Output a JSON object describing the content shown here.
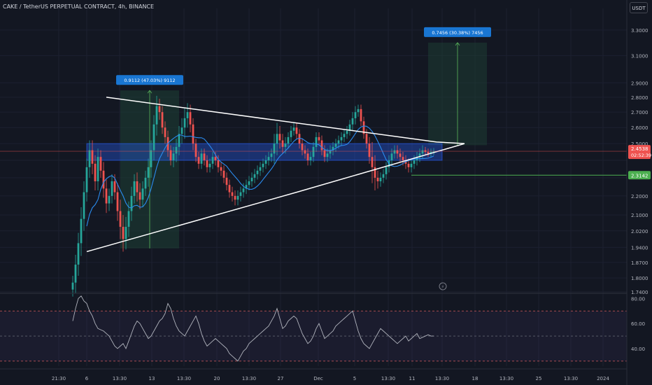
{
  "header": {
    "title": "CAKE / TetherUS PERPETUAL CONTRACT, 4h, BINANCE",
    "currency": "USDT"
  },
  "colors": {
    "background": "#131722",
    "bull": "#26a69a",
    "bear": "#ef5350",
    "zone": "#2962ff",
    "ma": "#2a8cf0",
    "triangle": "#ffffff",
    "target_box": "#1e4034",
    "support": "#4caf50",
    "rsi": "#b2b5be",
    "axis_text": "#b2b5be"
  },
  "chart_data": [
    {
      "type": "candlestick",
      "title": "",
      "series": [
        {
          "name": "",
          "kind": "candles"
        },
        {
          "name": "",
          "kind": "moving-average"
        }
      ],
      "x_ticks": [
        "21:30",
        "6",
        "13:30",
        "13",
        "13:30",
        "20",
        "13:30",
        "27",
        "Dec",
        "5",
        "13:30",
        "11",
        "13:30",
        "18",
        "13:30",
        "25",
        "13:30",
        "2024"
      ],
      "y_ticks": [
        1.74,
        1.8,
        1.87,
        1.94,
        2.02,
        2.1,
        2.2,
        2.3,
        2.4,
        2.5,
        2.6,
        2.7,
        2.8,
        2.9,
        3.1,
        3.3
      ],
      "y_tick_labels": [
        "1.7400",
        "1.8000",
        "1.8700",
        "1.9400",
        "2.0200",
        "2.1000",
        "2.2000",
        "",
        "",
        "2.5000",
        "2.6000",
        "2.7000",
        "2.8000",
        "2.9000",
        "3.1000",
        "3.3000"
      ],
      "ylim": [
        1.74,
        3.42
      ],
      "y_scale": "log",
      "bars": 130,
      "bar_closes": [
        1.78,
        1.86,
        1.96,
        2.08,
        2.22,
        2.36,
        2.46,
        2.38,
        2.28,
        2.42,
        2.34,
        2.24,
        2.16,
        2.2,
        2.28,
        2.22,
        2.12,
        2.04,
        1.98,
        2.04,
        2.12,
        2.2,
        2.28,
        2.22,
        2.18,
        2.24,
        2.3,
        2.36,
        2.46,
        2.62,
        2.74,
        2.7,
        2.6,
        2.54,
        2.46,
        2.4,
        2.44,
        2.48,
        2.56,
        2.6,
        2.66,
        2.7,
        2.62,
        2.5,
        2.42,
        2.38,
        2.44,
        2.4,
        2.36,
        2.38,
        2.42,
        2.4,
        2.36,
        2.34,
        2.3,
        2.26,
        2.22,
        2.2,
        2.18,
        2.2,
        2.22,
        2.24,
        2.26,
        2.28,
        2.3,
        2.32,
        2.34,
        2.36,
        2.38,
        2.4,
        2.42,
        2.44,
        2.5,
        2.56,
        2.52,
        2.48,
        2.5,
        2.54,
        2.58,
        2.6,
        2.56,
        2.5,
        2.46,
        2.44,
        2.4,
        2.42,
        2.48,
        2.54,
        2.52,
        2.46,
        2.42,
        2.44,
        2.46,
        2.48,
        2.5,
        2.52,
        2.54,
        2.56,
        2.58,
        2.62,
        2.66,
        2.7,
        2.72,
        2.64,
        2.56,
        2.5,
        2.42,
        2.36,
        2.3,
        2.28,
        2.3,
        2.32,
        2.36,
        2.4,
        2.44,
        2.46,
        2.44,
        2.42,
        2.4,
        2.38,
        2.36,
        2.38,
        2.4,
        2.42,
        2.44,
        2.46,
        2.45,
        2.44,
        2.45,
        2.4538
      ],
      "bar_ranges": [
        0.06,
        0.09,
        0.1,
        0.12,
        0.12,
        0.1,
        0.12,
        0.12,
        0.1,
        0.1,
        0.08,
        0.1,
        0.1,
        0.08,
        0.08,
        0.08,
        0.1,
        0.12,
        0.12,
        0.1,
        0.1,
        0.1,
        0.08,
        0.1,
        0.1,
        0.08,
        0.08,
        0.1,
        0.12,
        0.12,
        0.14,
        0.1,
        0.08,
        0.08,
        0.08,
        0.06,
        0.08,
        0.1,
        0.1,
        0.12,
        0.14,
        0.12,
        0.1,
        0.08,
        0.06,
        0.06,
        0.06,
        0.06,
        0.06,
        0.06,
        0.06,
        0.06,
        0.06,
        0.06,
        0.06,
        0.06,
        0.06,
        0.06,
        0.06,
        0.06,
        0.06,
        0.06,
        0.06,
        0.06,
        0.06,
        0.06,
        0.06,
        0.06,
        0.06,
        0.06,
        0.06,
        0.06,
        0.12,
        0.14,
        0.1,
        0.08,
        0.08,
        0.06,
        0.06,
        0.06,
        0.06,
        0.06,
        0.06,
        0.06,
        0.06,
        0.06,
        0.06,
        0.06,
        0.06,
        0.06,
        0.06,
        0.06,
        0.06,
        0.06,
        0.06,
        0.06,
        0.06,
        0.06,
        0.06,
        0.06,
        0.08,
        0.08,
        0.06,
        0.06,
        0.06,
        0.06,
        0.08,
        0.18,
        0.14,
        0.08,
        0.06,
        0.06,
        0.06,
        0.06,
        0.06,
        0.06,
        0.06,
        0.06,
        0.06,
        0.06,
        0.06,
        0.06,
        0.06,
        0.06,
        0.06,
        0.06,
        0.04,
        0.04,
        0.04,
        0.04
      ],
      "current_price": {
        "value": 2.4538,
        "label": "2.4538",
        "countdown": "02:52:39"
      },
      "support": {
        "value": 2.3142,
        "label": "2.3142"
      },
      "resistance_zone": {
        "low": 2.4,
        "high": 2.5
      },
      "triangle": {
        "upper_line": [
          [
            12,
            2.8
          ],
          [
            130,
            2.51
          ],
          [
            140,
            2.5
          ]
        ],
        "lower_line": [
          [
            5,
            1.92
          ],
          [
            80,
            2.22
          ],
          [
            140,
            2.5
          ]
        ]
      },
      "measure_boxes": [
        {
          "label": "0.9112 (47.03%) 9112",
          "from_bar": 17,
          "to_bar": 38,
          "low": 1.935,
          "high": 2.847
        },
        {
          "label": "0.7456 (30.38%) 7456",
          "from_bar": 127,
          "to_bar": 148,
          "low": 2.49,
          "high": 3.2
        }
      ]
    },
    {
      "type": "line",
      "title": "",
      "y_ticks": [
        40,
        60,
        80
      ],
      "y_tick_labels": [
        "40.00",
        "60.00",
        "80.00"
      ],
      "ylim": [
        26,
        83
      ],
      "bands": {
        "upper": 70,
        "middle": 50,
        "lower": 30
      },
      "values": [
        62,
        72,
        80,
        82,
        78,
        76,
        70,
        66,
        60,
        56,
        55,
        54,
        52,
        50,
        46,
        42,
        40,
        42,
        44,
        40,
        46,
        52,
        58,
        62,
        60,
        56,
        52,
        48,
        50,
        54,
        58,
        62,
        64,
        68,
        76,
        72,
        64,
        58,
        54,
        52,
        50,
        54,
        58,
        62,
        66,
        60,
        52,
        46,
        42,
        44,
        46,
        48,
        46,
        44,
        42,
        40,
        36,
        34,
        32,
        30,
        34,
        38,
        40,
        44,
        46,
        48,
        50,
        52,
        54,
        56,
        58,
        62,
        66,
        72,
        64,
        56,
        58,
        62,
        64,
        66,
        64,
        58,
        52,
        48,
        44,
        46,
        50,
        56,
        60,
        54,
        48,
        50,
        52,
        54,
        58,
        60,
        62,
        64,
        66,
        68,
        70,
        62,
        54,
        48,
        44,
        42,
        40,
        44,
        48,
        52,
        56,
        54,
        52,
        50,
        48,
        46,
        44,
        46,
        48,
        50,
        46,
        48,
        50,
        52,
        48,
        49,
        50,
        51,
        50,
        50
      ]
    }
  ]
}
